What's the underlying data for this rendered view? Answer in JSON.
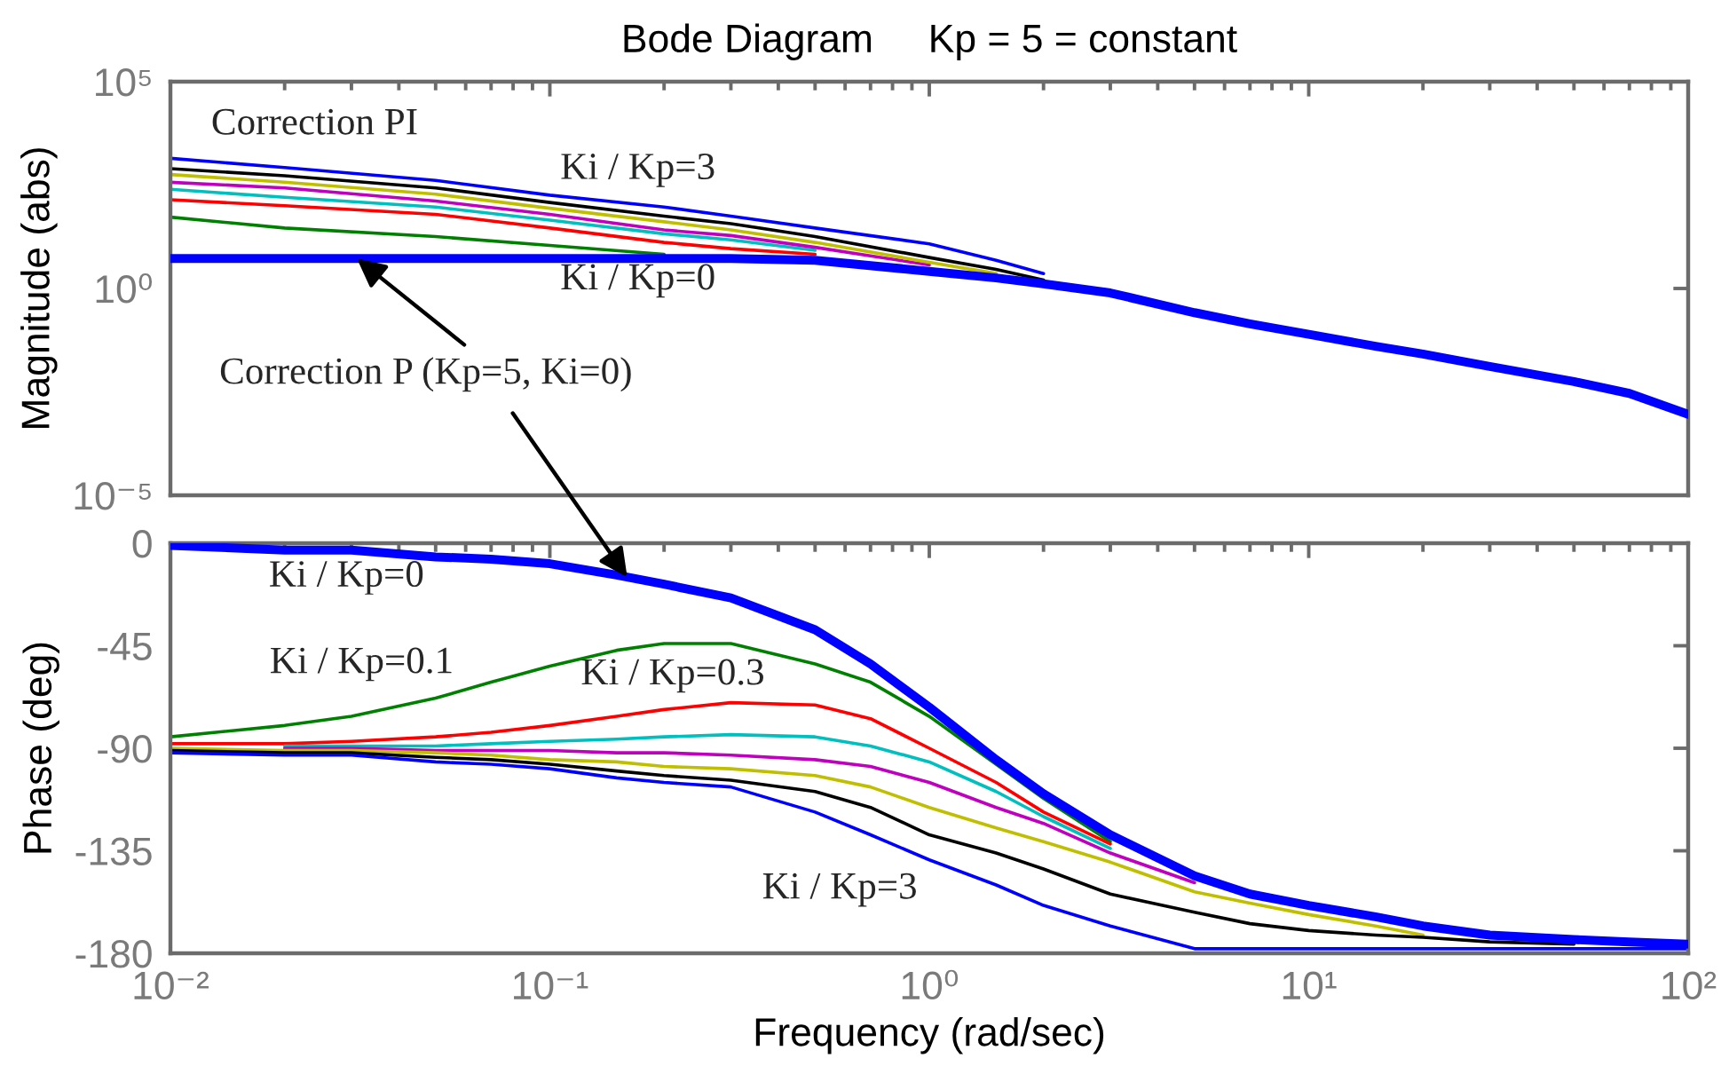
{
  "chart_data": [
    {
      "type": "line",
      "title": "Bode Diagram     Kp = 5 = constant",
      "ylabel": "Magnitude (abs)",
      "log": "xy",
      "x": [
        0.01,
        0.02,
        0.05,
        0.1,
        0.2,
        0.3,
        0.5,
        1,
        1.5,
        2,
        3,
        5,
        7,
        10,
        15,
        20,
        30,
        50,
        70,
        100
      ],
      "series": [
        {
          "color": "#0000ff",
          "values": [
            5.3,
            5.3,
            5.3,
            5.3,
            5.3,
            5.3,
            4.8,
            2.6,
            1.8,
            1.3,
            0.78,
            0.26,
            0.14,
            0.078,
            0.04,
            0.026,
            0.013,
            0.0056,
            0.0029,
            0.00091
          ]
        },
        {
          "color": "#008000",
          "values": [
            53,
            29,
            18,
            11,
            6.7,
            null,
            null,
            null,
            null,
            null,
            null,
            null,
            null,
            null,
            null,
            null,
            null,
            null,
            null,
            null
          ]
        },
        {
          "color": "#ff0000",
          "values": [
            140,
            100,
            62,
            29,
            13,
            9.2,
            6.7,
            null,
            null,
            null,
            null,
            null,
            null,
            null,
            null,
            null,
            null,
            null,
            null,
            null
          ]
        },
        {
          "color": "#00bfbf",
          "values": [
            250,
            160,
            93,
            45,
            21,
            15,
            8.4,
            null,
            null,
            null,
            null,
            null,
            null,
            null,
            null,
            null,
            null,
            null,
            null,
            null
          ]
        },
        {
          "color": "#bf00bf",
          "values": [
            370,
            270,
            130,
            62,
            26,
            19,
            9.9,
            3.7,
            null,
            null,
            null,
            null,
            null,
            null,
            null,
            null,
            null,
            null,
            null,
            null
          ]
        },
        {
          "color": "#bfbf00",
          "values": [
            570,
            370,
            190,
            87,
            41,
            26,
            13,
            4.3,
            2.3,
            null,
            null,
            null,
            null,
            null,
            null,
            null,
            null,
            null,
            null,
            null
          ]
        },
        {
          "color": "#000000",
          "values": [
            790,
            530,
            270,
            120,
            56,
            37,
            18,
            5.6,
            2.9,
            1.6,
            null,
            null,
            null,
            null,
            null,
            null,
            null,
            null,
            null,
            null
          ]
        },
        {
          "color": "#0000ff",
          "values": [
            1400,
            840,
            410,
            180,
            93,
            56,
            29,
            12,
            4.8,
            2.3,
            null,
            null,
            null,
            null,
            null,
            null,
            null,
            null,
            null,
            null
          ]
        }
      ],
      "xlim": [
        0.01,
        100
      ],
      "xticks": [
        {
          "value": 0.01,
          "label": null
        },
        {
          "value": 0.1,
          "label": null
        },
        {
          "value": 1,
          "label": null
        },
        {
          "value": 10,
          "label": null
        },
        {
          "value": 100,
          "label": null
        }
      ],
      "ylim": [
        1e-05,
        100000
      ],
      "yticks": [
        {
          "value": 1e-05,
          "label": "10⁻⁵"
        },
        {
          "value": 1,
          "label": "10⁰"
        },
        {
          "value": 100000,
          "label": "10⁵"
        }
      ],
      "tick_labels": "y",
      "annotations": [
        "Correction PI",
        "Ki / Kp=3",
        "Ki / Kp=0",
        {
          "text": "Correction P (Kp=5, Ki=0)",
          "x": 0.031,
          "y": 5.3
        }
      ]
    },
    {
      "type": "line",
      "xlabel": "Frequency (rad/sec)",
      "ylabel": "Phase (deg)",
      "log": "x",
      "x": [
        0.01,
        0.02,
        0.03,
        0.05,
        0.07,
        0.1,
        0.15,
        0.2,
        0.3,
        0.5,
        0.7,
        1,
        1.5,
        2,
        3,
        5,
        7,
        10,
        15,
        20,
        30,
        50,
        70,
        100
      ],
      "series": [
        {
          "color": "#0000ff",
          "values": [
            -1,
            -3,
            -3,
            -6,
            -7,
            -9,
            -14,
            -18,
            -24,
            -38,
            -53,
            -72,
            -95,
            -110,
            -128,
            -146,
            -154,
            -159,
            -164,
            -168,
            -172,
            -174,
            -175,
            -176
          ]
        },
        {
          "color": "#008000",
          "values": [
            -85,
            -80,
            -76,
            -68,
            -61,
            -54,
            -47,
            -44,
            -44,
            -53,
            -61,
            -76,
            -97,
            -112,
            -131,
            null,
            null,
            null,
            null,
            null,
            null,
            null,
            null,
            null
          ]
        },
        {
          "color": "#ff0000",
          "values": [
            -88,
            -88,
            -87,
            -85,
            -83,
            -80,
            -76,
            -73,
            -70,
            -71,
            -77,
            -90,
            -105,
            -118,
            -132,
            null,
            null,
            null,
            null,
            null,
            null,
            null,
            null,
            null
          ]
        },
        {
          "color": "#00bfbf",
          "values": [
            null,
            -89,
            -89,
            -89,
            -88,
            -87,
            -86,
            -85,
            -84,
            -85,
            -89,
            -96,
            -109,
            -120,
            -134,
            null,
            null,
            null,
            null,
            null,
            null,
            null,
            null,
            null
          ]
        },
        {
          "color": "#bf00bf",
          "values": [
            null,
            -90,
            -90,
            -91,
            -91,
            -91,
            -92,
            -92,
            -93,
            -95,
            -98,
            -105,
            -116,
            -123,
            -136,
            -149,
            null,
            null,
            null,
            null,
            null,
            null,
            null,
            null
          ]
        },
        {
          "color": "#bfbf00",
          "values": [
            -90,
            -91,
            -91,
            -92,
            -93,
            -95,
            -96,
            -98,
            -99,
            -102,
            -107,
            -116,
            -125,
            -131,
            -140,
            -153,
            -158,
            -163,
            -168,
            -172,
            null,
            null,
            null,
            null
          ]
        },
        {
          "color": "#000000",
          "values": [
            -91,
            -92,
            -92,
            -94,
            -95,
            -97,
            -100,
            -102,
            -104,
            -109,
            -116,
            -128,
            -136,
            -143,
            -154,
            -162,
            -167,
            -170,
            -172,
            -173,
            -175,
            -176,
            null,
            null
          ]
        },
        {
          "color": "#0000ff",
          "values": [
            -92,
            -93,
            -93,
            -96,
            -97,
            -99,
            -103,
            -105,
            -107,
            -118,
            -128,
            -139,
            -150,
            -159,
            -168,
            -178,
            -178,
            -178,
            -178,
            -178,
            -178,
            -178,
            -178,
            -178
          ]
        }
      ],
      "xlim": [
        0.01,
        100
      ],
      "xticks": [
        {
          "value": 0.01,
          "label": "10⁻²"
        },
        {
          "value": 0.1,
          "label": "10⁻¹"
        },
        {
          "value": 1,
          "label": "10⁰"
        },
        {
          "value": 10,
          "label": "10¹"
        },
        {
          "value": 100,
          "label": "10²"
        }
      ],
      "ylim": [
        -180,
        0
      ],
      "yticks": [
        -180,
        -135,
        -90,
        -45,
        0
      ],
      "annotations": [
        "Ki / Kp=0",
        "Ki / Kp=0.1",
        "Ki / Kp=0.3",
        "Ki / Kp=3"
      ]
    }
  ]
}
